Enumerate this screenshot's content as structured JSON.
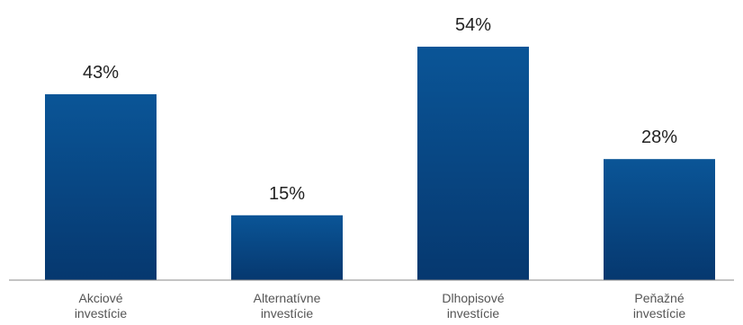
{
  "chart_data": {
    "type": "bar",
    "categories": [
      [
        "Akciové",
        "investície"
      ],
      [
        "Alternatívne",
        "investície"
      ],
      [
        "Dlhopisové",
        "investície"
      ],
      [
        "Peňažné",
        "investície"
      ]
    ],
    "values": [
      43,
      15,
      54,
      28
    ],
    "value_labels": [
      "43%",
      "15%",
      "54%",
      "28%"
    ],
    "ylim": [
      0,
      60
    ],
    "grid": false,
    "legend": "none",
    "colors": {
      "bar_top": "#0a5597",
      "bar_bottom": "#06386f",
      "axis": "#888888"
    }
  }
}
